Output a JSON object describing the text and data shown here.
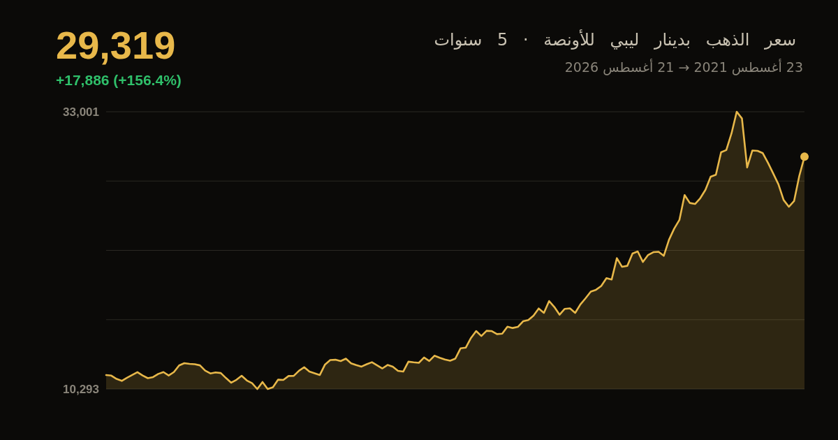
{
  "chart_data": {
    "type": "area",
    "title": "سعر الذهب بدينار ليبي للأونصة · 5 سنوات",
    "subtitle": "23 أغسطس 2021 → 21 أغسطس 2026",
    "annotations": [
      "29,319",
      "+17,886 (+156.4%)"
    ],
    "categories": [
      null,
      null,
      null,
      null,
      null,
      null,
      null,
      null,
      null,
      null,
      null,
      null,
      null,
      null,
      null,
      null,
      null,
      null,
      null,
      null,
      null,
      null,
      null,
      null,
      null,
      null,
      null,
      null,
      null,
      null,
      null,
      null,
      null,
      null,
      null,
      null,
      null,
      null,
      null,
      null,
      null,
      null,
      null,
      null,
      null,
      null,
      null,
      null,
      null,
      null,
      null,
      null,
      null,
      null,
      null,
      null,
      null,
      null,
      null,
      null,
      null,
      null,
      null,
      null,
      null,
      null,
      null,
      null,
      null,
      null,
      null,
      null,
      null,
      null,
      null,
      null,
      null,
      null,
      null,
      null,
      null,
      null,
      null,
      null,
      null,
      null,
      null,
      null,
      null,
      null,
      null,
      null,
      null,
      null,
      null,
      null,
      null,
      null,
      null,
      null,
      null,
      null,
      null,
      null,
      null,
      null,
      null,
      null,
      null,
      null,
      null,
      null,
      null,
      null,
      null,
      null,
      null,
      null,
      null,
      null,
      null,
      null,
      null,
      null,
      null,
      null,
      null,
      null,
      null,
      null,
      null,
      null,
      null,
      null,
      null
    ],
    "series": [
      {
        "color": "#e8b84a",
        "values": [
          11433,
          11390,
          11120,
          10960,
          11220,
          11440,
          11670,
          11400,
          11180,
          11270,
          11530,
          11680,
          11400,
          11680,
          12220,
          12410,
          12350,
          12320,
          12230,
          11800,
          11570,
          11650,
          11600,
          11190,
          10810,
          11050,
          11380,
          10990,
          10770,
          10293,
          10870,
          10293,
          10440,
          11060,
          11040,
          11360,
          11370,
          11790,
          12080,
          11720,
          11580,
          11440,
          12300,
          12670,
          12690,
          12580,
          12780,
          12400,
          12250,
          12130,
          12320,
          12490,
          12230,
          11980,
          12260,
          12120,
          11780,
          11720,
          12530,
          12480,
          12440,
          12870,
          12590,
          13020,
          12850,
          12710,
          12610,
          12780,
          13620,
          13680,
          14470,
          15040,
          14630,
          15060,
          15040,
          14790,
          14830,
          15400,
          15290,
          15380,
          15840,
          15940,
          16300,
          16890,
          16530,
          17500,
          17010,
          16380,
          16860,
          16900,
          16530,
          17220,
          17730,
          18270,
          18420,
          18730,
          19370,
          19260,
          21010,
          20300,
          20380,
          21390,
          21560,
          20700,
          21270,
          21500,
          21530,
          21200,
          22510,
          23430,
          24140,
          26180,
          25530,
          25450,
          25920,
          26610,
          27680,
          27840,
          29680,
          29860,
          31230,
          33001,
          32450,
          28440,
          29830,
          29800,
          29610,
          28820,
          27950,
          27060,
          25770,
          25220,
          25680,
          27740,
          29319
        ]
      },
      {
        "type": "scatter",
        "color": "#e8b84a",
        "values": [
          null,
          null,
          null,
          null,
          null,
          null,
          null,
          null,
          null,
          null,
          null,
          null,
          null,
          null,
          null,
          null,
          null,
          null,
          null,
          null,
          null,
          null,
          null,
          null,
          null,
          null,
          null,
          null,
          null,
          null,
          null,
          null,
          null,
          null,
          null,
          null,
          null,
          null,
          null,
          null,
          null,
          null,
          null,
          null,
          null,
          null,
          null,
          null,
          null,
          null,
          null,
          null,
          null,
          null,
          null,
          null,
          null,
          null,
          null,
          null,
          null,
          null,
          null,
          null,
          null,
          null,
          null,
          null,
          null,
          null,
          null,
          null,
          null,
          null,
          null,
          null,
          null,
          null,
          null,
          null,
          null,
          null,
          null,
          null,
          null,
          null,
          null,
          null,
          null,
          null,
          null,
          null,
          null,
          null,
          null,
          null,
          null,
          null,
          null,
          null,
          null,
          null,
          null,
          null,
          null,
          null,
          null,
          null,
          null,
          null,
          null,
          null,
          null,
          null,
          null,
          null,
          null,
          null,
          null,
          null,
          null,
          null,
          null,
          null,
          null,
          null,
          null,
          null,
          null,
          null,
          null,
          null,
          null,
          null,
          29319
        ]
      }
    ],
    "ylim": [
      10293,
      33001
    ],
    "yticks": [
      {
        "value": 10293,
        "label": "10,293"
      },
      {
        "value": 15970,
        "label": null
      },
      {
        "value": 21647,
        "label": null
      },
      {
        "value": 27324,
        "label": null
      },
      {
        "value": 33001,
        "label": "33,001"
      }
    ],
    "grid": "y",
    "tick_labels": "y"
  }
}
